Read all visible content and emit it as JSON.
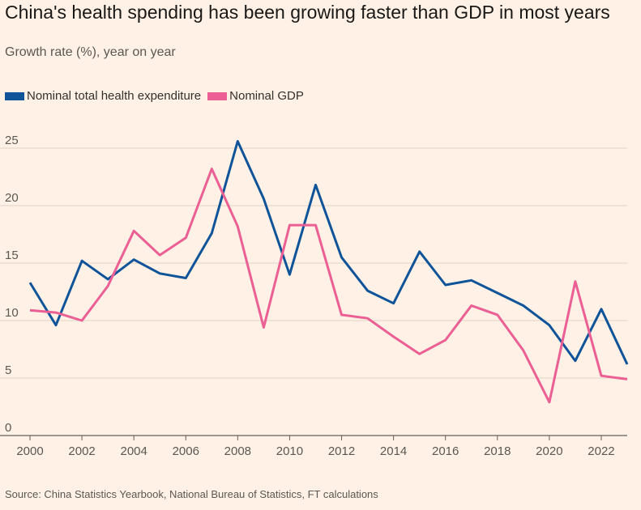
{
  "title": "China's health spending has been growing faster than GDP in most years",
  "subtitle": "Growth rate (%), year on year",
  "source": "Source: China Statistics Yearbook, National Bureau of Statistics, FT calculations",
  "legend": [
    {
      "label": "Nominal total health expenditure",
      "color": "#0f5499"
    },
    {
      "label": "Nominal GDP",
      "color": "#eb5f94"
    }
  ],
  "chart_data": {
    "type": "line",
    "title": "China's health spending has been growing faster than GDP in most years",
    "subtitle": "Growth rate (%), year on year",
    "xlabel": "",
    "ylabel": "Growth rate (%), year on year",
    "xlim": [
      2000,
      2023
    ],
    "ylim": [
      0,
      25
    ],
    "yticks": [
      0,
      5,
      10,
      15,
      20,
      25
    ],
    "xticks": [
      2000,
      2002,
      2004,
      2006,
      2008,
      2010,
      2012,
      2014,
      2016,
      2018,
      2020,
      2022
    ],
    "grid": true,
    "legend_position": "top-left",
    "x": [
      2000,
      2001,
      2002,
      2003,
      2004,
      2005,
      2006,
      2007,
      2008,
      2009,
      2010,
      2011,
      2012,
      2013,
      2014,
      2015,
      2016,
      2017,
      2018,
      2019,
      2020,
      2021,
      2022,
      2023
    ],
    "series": [
      {
        "name": "Nominal total health expenditure",
        "color": "#0f5499",
        "values": [
          13.3,
          9.6,
          15.2,
          13.6,
          15.3,
          14.1,
          13.7,
          17.6,
          25.6,
          20.6,
          14.0,
          21.8,
          15.5,
          12.6,
          11.5,
          16.0,
          13.1,
          13.5,
          12.4,
          11.3,
          9.6,
          6.5,
          11.0,
          6.2
        ]
      },
      {
        "name": "Nominal GDP",
        "color": "#eb5f94",
        "values": [
          10.9,
          10.7,
          10.0,
          13.0,
          17.8,
          15.7,
          17.2,
          23.2,
          18.2,
          9.4,
          18.3,
          18.3,
          10.5,
          10.2,
          8.6,
          7.1,
          8.3,
          11.3,
          10.5,
          7.4,
          2.9,
          13.4,
          5.2,
          4.9
        ]
      }
    ]
  }
}
